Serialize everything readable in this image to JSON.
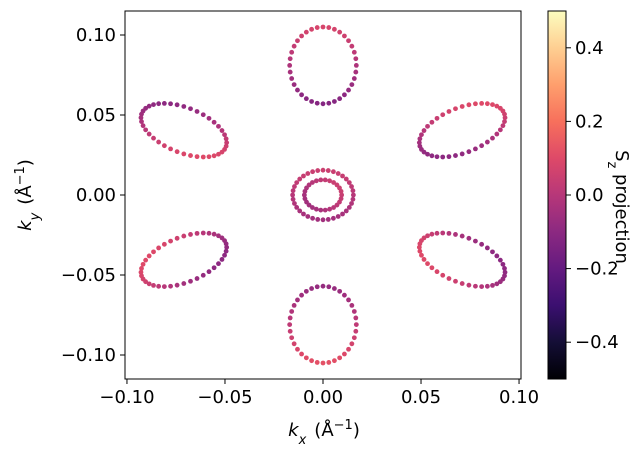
{
  "chart_data": {
    "type": "scatter",
    "xlabel_base": "k",
    "xlabel_sub": "x",
    "xlabel_unit": "(Å",
    "xlabel_exp": "−1",
    "xlabel_close": ")",
    "ylabel_base": "k",
    "ylabel_sub": "y",
    "ylabel_unit": "(Å",
    "ylabel_exp": "−1",
    "ylabel_close": ")",
    "colorbar_label_base": "S",
    "colorbar_label_sub": "z",
    "colorbar_label_rest": " projection",
    "colormap": "magma",
    "clim": [
      -0.5,
      0.5
    ],
    "xlim": [
      -0.101,
      0.101
    ],
    "ylim": [
      -0.115,
      0.115
    ],
    "x_ticks": [
      -0.1,
      -0.05,
      0.0,
      0.05,
      0.1
    ],
    "x_tick_labels": [
      "−0.10",
      "−0.05",
      "0.00",
      "0.05",
      "0.10"
    ],
    "y_ticks": [
      -0.1,
      -0.05,
      0.0,
      0.05,
      0.1
    ],
    "y_tick_labels": [
      "−0.10",
      "−0.05",
      "0.00",
      "0.05",
      "0.10"
    ],
    "colorbar_ticks": [
      -0.4,
      -0.2,
      0.0,
      0.2,
      0.4
    ],
    "colorbar_tick_labels": [
      "−0.4",
      "−0.2",
      "0.0",
      "0.2",
      "0.4"
    ],
    "grid": false,
    "series": [
      {
        "cx": 0.0,
        "cy": 0.0,
        "rx": 0.0155,
        "ry": 0.0155,
        "angle_deg": 0,
        "n": 36,
        "s_base": 0.0,
        "s_amp": 0.05,
        "phase": 0.0
      },
      {
        "cx": 0.0,
        "cy": 0.0,
        "rx": 0.0095,
        "ry": 0.0095,
        "angle_deg": 0,
        "n": 26,
        "s_base": 0.0,
        "s_amp": 0.05,
        "phase": 1.0
      },
      {
        "cx": 0.0,
        "cy": 0.081,
        "rx": 0.017,
        "ry": 0.024,
        "angle_deg": 0,
        "n": 36,
        "s_base": -0.02,
        "s_amp": 0.1,
        "phase": 0.0
      },
      {
        "cx": 0.0,
        "cy": -0.081,
        "rx": 0.017,
        "ry": 0.024,
        "angle_deg": 0,
        "n": 36,
        "s_base": 0.02,
        "s_amp": 0.1,
        "phase": 3.14
      },
      {
        "cx": 0.071,
        "cy": 0.0405,
        "rx": 0.024,
        "ry": 0.0135,
        "angle_deg": 30,
        "n": 40,
        "s_base": 0.0,
        "s_amp": 0.1,
        "phase": 0.8
      },
      {
        "cx": -0.071,
        "cy": 0.0405,
        "rx": 0.024,
        "ry": 0.0135,
        "angle_deg": -30,
        "n": 40,
        "s_base": 0.0,
        "s_amp": 0.1,
        "phase": 2.4
      },
      {
        "cx": 0.071,
        "cy": -0.0405,
        "rx": 0.024,
        "ry": 0.0135,
        "angle_deg": -30,
        "n": 40,
        "s_base": 0.0,
        "s_amp": 0.1,
        "phase": 4.0
      },
      {
        "cx": -0.071,
        "cy": -0.0405,
        "rx": 0.024,
        "ry": 0.0135,
        "angle_deg": 30,
        "n": 40,
        "s_base": 0.0,
        "s_amp": 0.1,
        "phase": 5.5
      }
    ]
  }
}
